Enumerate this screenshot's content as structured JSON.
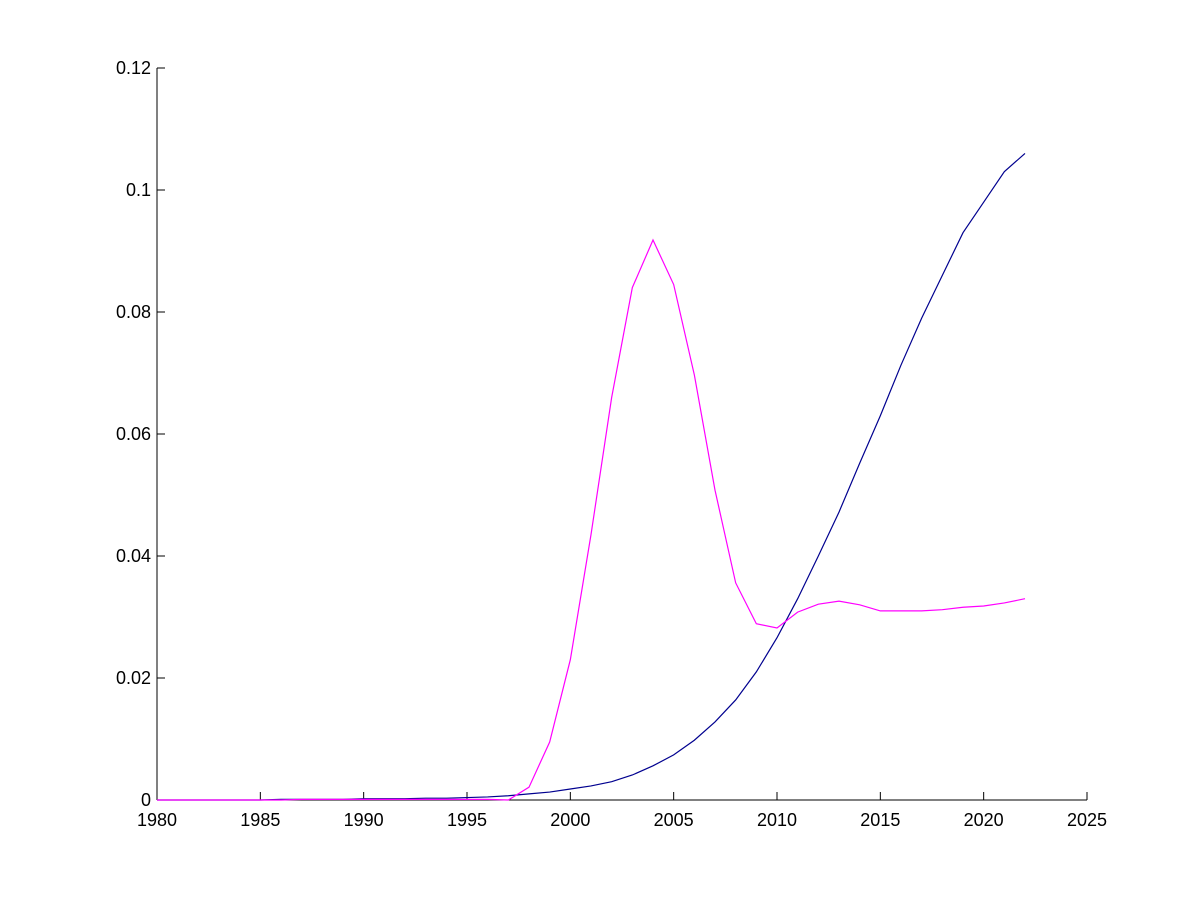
{
  "chart_data": {
    "type": "line",
    "x": [
      1980,
      1981,
      1982,
      1983,
      1984,
      1985,
      1986,
      1987,
      1988,
      1989,
      1990,
      1991,
      1992,
      1993,
      1994,
      1995,
      1996,
      1997,
      1998,
      1999,
      2000,
      2001,
      2002,
      2003,
      2004,
      2005,
      2006,
      2007,
      2008,
      2009,
      2010,
      2011,
      2012,
      2013,
      2014,
      2015,
      2016,
      2017,
      2018,
      2019,
      2020,
      2021,
      2022
    ],
    "series": [
      {
        "color": "#00008f",
        "values": [
          0,
          0,
          0,
          0,
          0,
          0,
          0.0001,
          0.0001,
          0.0001,
          0.0001,
          0.0002,
          0.0002,
          0.0002,
          0.0003,
          0.0003,
          0.0004,
          0.0005,
          0.0007,
          0.001,
          0.0013,
          0.0018,
          0.0023,
          0.003,
          0.0041,
          0.0056,
          0.0074,
          0.0098,
          0.0128,
          0.0164,
          0.021,
          0.0266,
          0.033,
          0.04,
          0.0472,
          0.0552,
          0.063,
          0.0713,
          0.079,
          0.086,
          0.093,
          0.098,
          0.103,
          0.106
        ]
      },
      {
        "color": "#ff00ff",
        "values": [
          0,
          0,
          0,
          0,
          0,
          0,
          0,
          0.0001,
          0.0001,
          0.0001,
          0.0001,
          0.0001,
          0.0001,
          0.0001,
          0.0001,
          0.0001,
          0.0001,
          0,
          0.0021,
          0.0095,
          0.023,
          0.0435,
          0.066,
          0.084,
          0.0918,
          0.0845,
          0.0697,
          0.0508,
          0.0356,
          0.0289,
          0.0282,
          0.0308,
          0.0321,
          0.0326,
          0.032,
          0.031,
          0.031,
          0.031,
          0.0312,
          0.0316,
          0.0318,
          0.0323,
          0.033
        ]
      }
    ],
    "xlim": [
      1980,
      2025
    ],
    "xticks": [
      1980,
      1985,
      1990,
      1995,
      2000,
      2005,
      2010,
      2015,
      2020,
      2025
    ],
    "ylim": [
      0,
      0.12
    ],
    "yticks": [
      0,
      0.02,
      0.04,
      0.06,
      0.08,
      0.1,
      0.12
    ],
    "grid": false
  }
}
